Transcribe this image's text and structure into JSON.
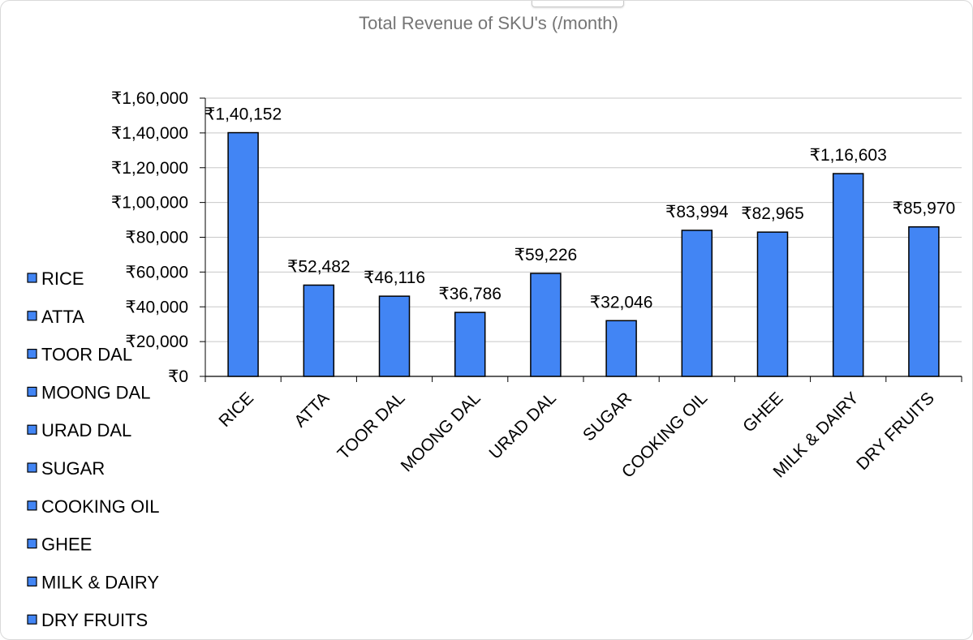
{
  "chart_data": {
    "type": "bar",
    "title": "Total Revenue of SKU's (/month)",
    "xlabel": "",
    "ylabel": "",
    "ylim": [
      0,
      160000
    ],
    "yticks": [
      0,
      20000,
      40000,
      60000,
      80000,
      100000,
      120000,
      140000,
      160000
    ],
    "ytick_labels": [
      "₹0",
      "₹20,000",
      "₹40,000",
      "₹60,000",
      "₹80,000",
      "₹1,00,000",
      "₹1,20,000",
      "₹1,40,000",
      "₹1,60,000"
    ],
    "categories": [
      "RICE",
      "ATTA",
      "TOOR DAL",
      "MOONG DAL",
      "URAD DAL",
      "SUGAR",
      "COOKING OIL",
      "GHEE",
      "MILK & DAIRY",
      "DRY FRUITS"
    ],
    "values": [
      140152,
      52482,
      46116,
      36786,
      59226,
      32046,
      83994,
      82965,
      116603,
      85970
    ],
    "value_labels": [
      "₹1,40,152",
      "₹52,482",
      "₹46,116",
      "₹36,786",
      "₹59,226",
      "₹32,046",
      "₹83,994",
      "₹82,965",
      "₹1,16,603",
      "₹85,970"
    ],
    "legend": [
      "RICE",
      "ATTA",
      "TOOR DAL",
      "MOONG DAL",
      "URAD DAL",
      "SUGAR",
      "COOKING OIL",
      "GHEE",
      "MILK & DAIRY",
      "DRY FRUITS"
    ],
    "legend_position": "left",
    "grid": true,
    "colors": {
      "bar": "#4285f4",
      "bar_edge": "#000000",
      "grid": "#c8c8c8",
      "title": "#757575"
    }
  }
}
